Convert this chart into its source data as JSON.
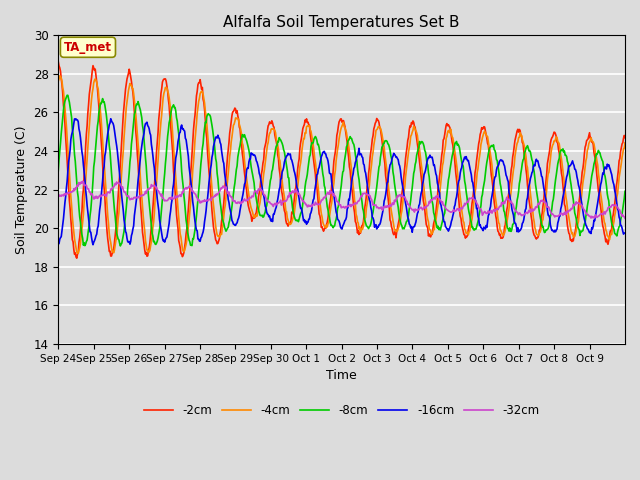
{
  "title": "Alfalfa Soil Temperatures Set B",
  "xlabel": "Time",
  "ylabel": "Soil Temperature (C)",
  "ylim": [
    14,
    30
  ],
  "yticks": [
    14,
    16,
    18,
    20,
    22,
    24,
    26,
    28,
    30
  ],
  "x_labels": [
    "Sep 24",
    "Sep 25",
    "Sep 26",
    "Sep 27",
    "Sep 28",
    "Sep 29",
    "Sep 30",
    "Oct 1",
    "Oct 2",
    "Oct 3",
    "Oct 4",
    "Oct 5",
    "Oct 6",
    "Oct 7",
    "Oct 8",
    "Oct 9"
  ],
  "annotation_text": "TA_met",
  "annotation_color": "#cc0000",
  "annotation_bg": "#ffffcc",
  "bg_color": "#dcdcdc",
  "plot_bg": "#dcdcdc",
  "grid_color": "white",
  "series": [
    {
      "label": "-2cm",
      "color": "#ff2200",
      "lw": 1.2
    },
    {
      "label": "-4cm",
      "color": "#ff8800",
      "lw": 1.2
    },
    {
      "label": "-8cm",
      "color": "#00cc00",
      "lw": 1.2
    },
    {
      "label": "-16cm",
      "color": "#0000ee",
      "lw": 1.2
    },
    {
      "label": "-32cm",
      "color": "#cc44cc",
      "lw": 1.2
    }
  ],
  "n_days": 16,
  "points_per_day": 48
}
